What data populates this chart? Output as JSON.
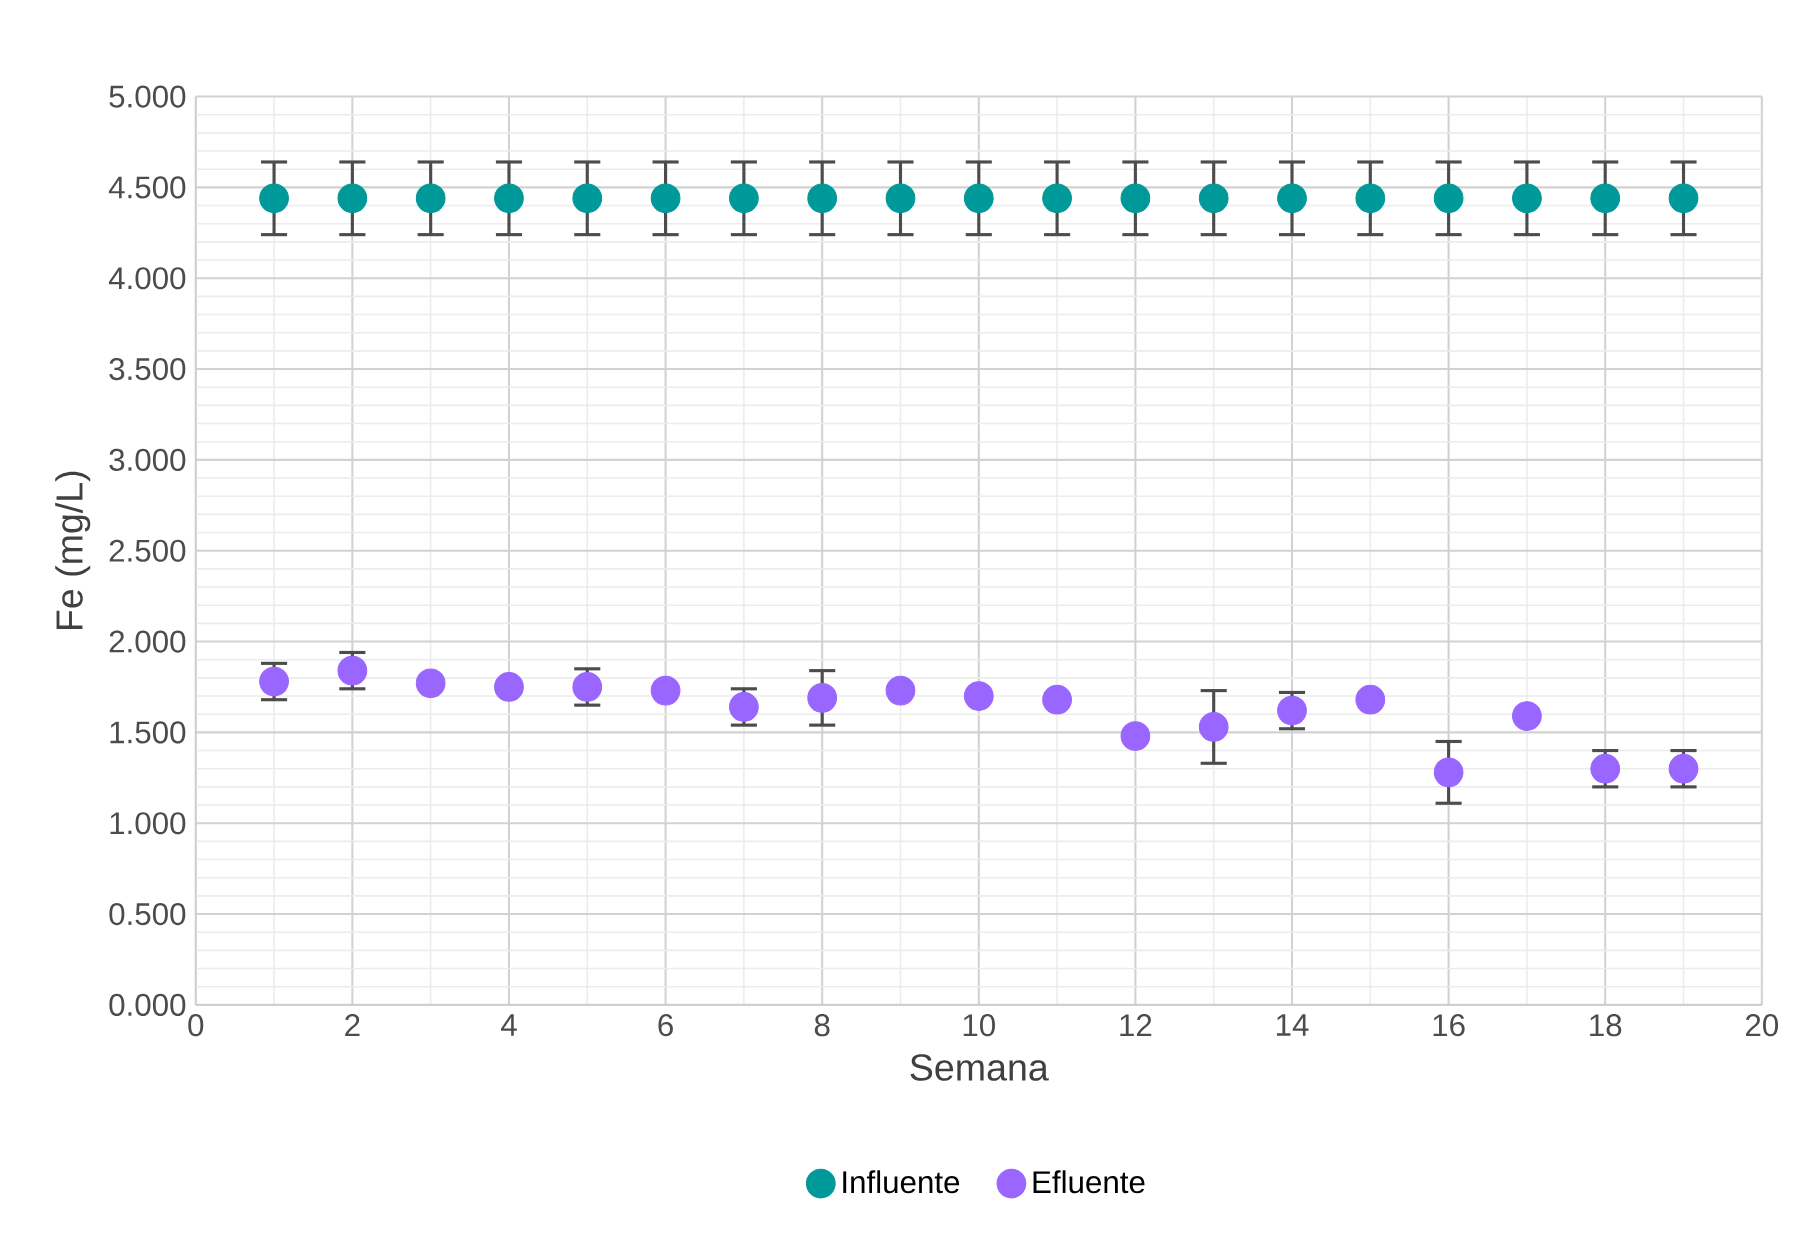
{
  "chart_data": {
    "type": "scatter",
    "xlabel": "Semana",
    "ylabel": "Fe (mg/L)",
    "x": [
      1,
      2,
      3,
      4,
      5,
      6,
      7,
      8,
      9,
      10,
      11,
      12,
      13,
      14,
      15,
      16,
      17,
      18,
      19
    ],
    "series": [
      {
        "name": "Influente",
        "color": "#009999",
        "values": [
          4.44,
          4.44,
          4.44,
          4.44,
          4.44,
          4.44,
          4.44,
          4.44,
          4.44,
          4.44,
          4.44,
          4.44,
          4.44,
          4.44,
          4.44,
          4.44,
          4.44,
          4.44,
          4.44
        ],
        "errors": [
          0.2,
          0.2,
          0.2,
          0.2,
          0.2,
          0.2,
          0.2,
          0.2,
          0.2,
          0.2,
          0.2,
          0.2,
          0.2,
          0.2,
          0.2,
          0.2,
          0.2,
          0.2,
          0.2
        ]
      },
      {
        "name": "Efluente",
        "color": "#9966ff",
        "values": [
          1.78,
          1.84,
          1.77,
          1.75,
          1.75,
          1.73,
          1.64,
          1.69,
          1.73,
          1.7,
          1.68,
          1.48,
          1.53,
          1.62,
          1.68,
          1.28,
          1.59,
          1.3,
          1.3
        ],
        "errors": [
          0.1,
          0.1,
          null,
          null,
          0.1,
          null,
          0.1,
          0.15,
          null,
          null,
          null,
          null,
          0.2,
          0.1,
          null,
          0.17,
          null,
          0.1,
          0.1
        ]
      }
    ],
    "xlim": [
      0,
      20
    ],
    "xticks": [
      0,
      2,
      4,
      6,
      8,
      10,
      12,
      14,
      16,
      18,
      20
    ],
    "ylim": [
      0,
      5
    ],
    "yticks": [
      {
        "value": 0,
        "label": "0.000"
      },
      {
        "value": 0.5,
        "label": "0.500"
      },
      {
        "value": 1,
        "label": "1.000"
      },
      {
        "value": 1.5,
        "label": "1.500"
      },
      {
        "value": 2,
        "label": "2.000"
      },
      {
        "value": 2.5,
        "label": "2.500"
      },
      {
        "value": 3,
        "label": "3.000"
      },
      {
        "value": 3.5,
        "label": "3.500"
      },
      {
        "value": 4,
        "label": "4.000"
      },
      {
        "value": 4.5,
        "label": "4.500"
      },
      {
        "value": 5,
        "label": "5.000"
      }
    ],
    "grid": true,
    "legend": "bottom",
    "marker": "circle"
  }
}
